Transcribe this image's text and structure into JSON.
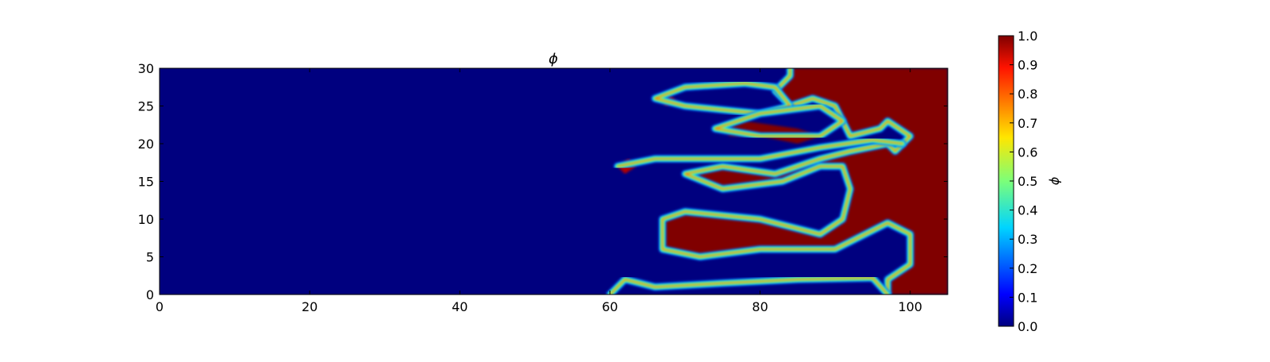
{
  "chart_data": [
    {
      "type": "heatmap",
      "title": "ϕ",
      "xlabel": "",
      "ylabel": "",
      "xlim": [
        0,
        105
      ],
      "ylim": [
        0,
        30
      ],
      "x_ticks": [
        0,
        20,
        40,
        60,
        80,
        100
      ],
      "y_ticks": [
        0,
        5,
        10,
        15,
        20,
        25,
        30
      ],
      "colormap": "jet",
      "vmin": 0.0,
      "vmax": 1.0,
      "grid": false,
      "background_value": 0.0,
      "filled_regions": [
        {
          "value": 1.0,
          "polygon": [
            [
              84,
              30
            ],
            [
              105,
              30
            ],
            [
              105,
              0
            ],
            [
              97,
              0
            ],
            [
              97,
              2
            ],
            [
              100,
              4
            ],
            [
              100,
              8
            ],
            [
              97,
              9.5
            ],
            [
              90,
              6
            ],
            [
              80,
              6
            ],
            [
              72,
              5
            ],
            [
              67,
              6
            ],
            [
              67,
              10
            ],
            [
              70,
              11
            ],
            [
              80,
              10
            ],
            [
              88,
              8
            ],
            [
              91,
              10
            ],
            [
              92,
              14
            ],
            [
              91,
              17
            ],
            [
              88,
              17
            ],
            [
              83,
              15
            ],
            [
              75,
              14
            ],
            [
              70,
              16
            ],
            [
              75,
              17
            ],
            [
              82,
              16
            ],
            [
              88,
              18
            ],
            [
              92,
              19
            ],
            [
              97,
              20
            ],
            [
              98,
              19
            ],
            [
              100,
              21
            ],
            [
              97,
              23
            ],
            [
              96,
              22
            ],
            [
              92,
              21
            ],
            [
              91,
              23
            ],
            [
              90,
              25
            ],
            [
              87,
              26
            ],
            [
              84,
              25
            ],
            [
              82,
              27
            ],
            [
              84,
              29
            ]
          ]
        },
        {
          "value": 1.0,
          "polygon": [
            [
              67,
              10
            ],
            [
              70,
              11
            ],
            [
              80,
              10
            ],
            [
              88,
              8
            ],
            [
              88,
              7
            ],
            [
              80,
              6
            ],
            [
              72,
              5
            ],
            [
              67,
              6
            ]
          ]
        },
        {
          "value": 1.0,
          "polygon": [
            [
              75,
              22
            ],
            [
              78,
              23
            ],
            [
              85,
              22
            ],
            [
              88,
              21
            ],
            [
              85,
              20
            ],
            [
              80,
              21
            ],
            [
              76,
              21
            ]
          ]
        },
        {
          "value": 0.95,
          "polygon": [
            [
              66.5,
              26
            ],
            [
              68,
              26.5
            ],
            [
              69,
              25.5
            ],
            [
              67.5,
              25
            ]
          ]
        },
        {
          "value": 0.95,
          "polygon": [
            [
              61,
              17
            ],
            [
              62.5,
              18
            ],
            [
              63.5,
              17
            ],
            [
              62,
              16
            ]
          ]
        }
      ],
      "interface_curves": [
        [
          [
            84,
            30
          ],
          [
            84,
            29
          ],
          [
            82,
            27
          ],
          [
            84,
            25
          ],
          [
            87,
            26
          ],
          [
            90,
            25
          ],
          [
            91,
            23
          ],
          [
            92,
            21
          ],
          [
            96,
            22
          ],
          [
            97,
            23
          ],
          [
            100,
            21
          ],
          [
            98,
            19
          ],
          [
            97,
            20
          ],
          [
            92,
            19
          ],
          [
            88,
            18
          ],
          [
            82,
            16
          ],
          [
            75,
            17
          ],
          [
            70,
            16
          ],
          [
            75,
            14
          ],
          [
            83,
            15
          ],
          [
            88,
            17
          ],
          [
            91,
            17
          ],
          [
            92,
            14
          ],
          [
            91,
            10
          ],
          [
            88,
            8
          ],
          [
            80,
            10
          ],
          [
            70,
            11
          ],
          [
            67,
            10
          ],
          [
            67,
            6
          ],
          [
            72,
            5
          ],
          [
            80,
            6
          ],
          [
            90,
            6
          ],
          [
            97,
            9.5
          ],
          [
            100,
            8
          ],
          [
            100,
            4
          ],
          [
            97,
            2
          ],
          [
            97,
            0
          ]
        ],
        [
          [
            66,
            26
          ],
          [
            70,
            27.5
          ],
          [
            78,
            28
          ],
          [
            82,
            27.5
          ],
          [
            84,
            25
          ],
          [
            80,
            24
          ],
          [
            70,
            25
          ],
          [
            66,
            26
          ]
        ],
        [
          [
            74,
            22
          ],
          [
            80,
            24
          ],
          [
            88,
            25
          ],
          [
            91,
            23
          ],
          [
            88,
            21
          ],
          [
            80,
            21
          ],
          [
            74,
            22
          ]
        ],
        [
          [
            61,
            17
          ],
          [
            66,
            18
          ],
          [
            72,
            18
          ],
          [
            80,
            18
          ],
          [
            88,
            19.5
          ],
          [
            95,
            20.5
          ],
          [
            99,
            20
          ]
        ],
        [
          [
            60,
            0
          ],
          [
            62,
            2
          ],
          [
            66,
            1
          ],
          [
            75,
            1.5
          ],
          [
            85,
            2
          ],
          [
            95,
            2.2
          ],
          [
            97,
            0
          ]
        ]
      ]
    },
    {
      "type": "colorbar",
      "label": "ϕ",
      "ticks": [
        "0.0",
        "0.1",
        "0.2",
        "0.3",
        "0.4",
        "0.5",
        "0.6",
        "0.7",
        "0.8",
        "0.9",
        "1.0"
      ]
    }
  ]
}
